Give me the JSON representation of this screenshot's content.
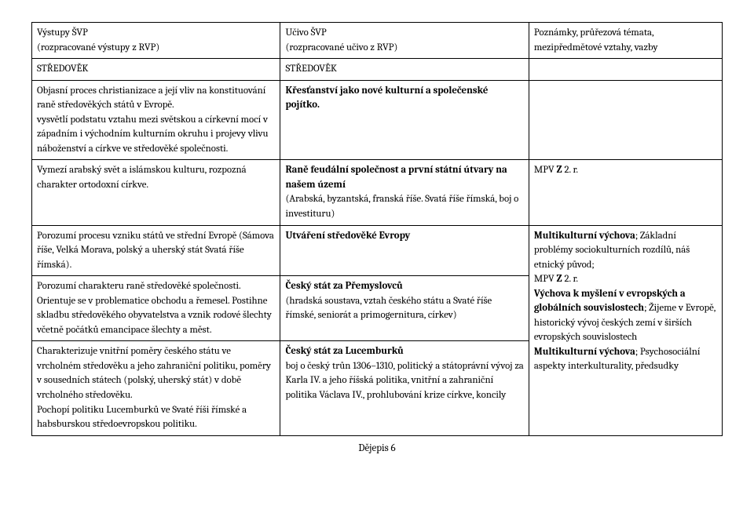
{
  "header": {
    "col1_line1": "Výstupy ŠVP",
    "col1_line2": "(rozpracované výstupy z RVP)",
    "col2_line1": "Učivo ŠVP",
    "col2_line2": "(rozpracované učivo z RVP)",
    "col3_line1": "Poznámky, průřezová témata,",
    "col3_line2": "mezipředmětové vztahy, vazby"
  },
  "row_section": {
    "col1": "STŘEDOVĚK",
    "col2": "STŘEDOVĚK"
  },
  "row1": {
    "col1_p1": "Objasní proces christianizace a její vliv na konstituování raně středověkých států v Evropě.",
    "col1_p2": "vysvětlí podstatu vztahu mezi světskou a církevní mocí v západním i východním kulturním okruhu i projevy vlivu náboženství a církve ve středověké společnosti.",
    "col2_b": "Křesťanství jako nové kulturní a společenské pojítko."
  },
  "row2": {
    "col1": "Vymezí arabský svět a islámskou kulturu, rozpozná charakter ortodoxní církve.",
    "col2_b": "Raně feudální společnost a první státní útvary na našem území",
    "col2_p": "(Arabská, byzantská, franská říše. Svatá říše římská, boj o investituru)",
    "col3_prefix": "MPV ",
    "col3_bold": "Z",
    "col3_suffix": " 2. r."
  },
  "group": {
    "c1_a": "Porozumí procesu vzniku států ve střední Evropě (Sámova říše, Velká Morava, polský a uherský stát Svatá říše římská).",
    "c2_a_b": "Utváření středověké Evropy",
    "c1_b": "Porozumí charakteru raně středověké společnosti. Orientuje se v problematice obchodu a řemesel. Postihne skladbu středověkého obyvatelstva a vznik rodové šlechty včetně počátků emancipace šlechty a měst.",
    "c2_b_b": "Český stát za Přemyslovců",
    "c2_b_p": "(hradská soustava, vztah českého státu a Svaté říše římské, seniorát a primogernitura, církev)",
    "c1_c_p1": "Charakterizuje vnitřní poměry českého státu ve vrcholném středověku a jeho zahraniční politiku, poměry v sousedních státech (polský, uherský stát) v době vrcholného středověku.",
    "c1_c_p2": "Pochopí politiku Lucemburků ve Svaté říši římské a habsburskou středoevropskou politiku.",
    "c2_c_b": "Český stát za Lucemburků",
    "c2_c_p": "boj o český trůn 1306–1310, politický a státoprávní vývoj za Karla IV. a jeho říšská politika, vnitřní a zahraniční politika Václava IV., prohlubování krize církve, koncily",
    "c3_b1": "Multikulturní výchova",
    "c3_t1": "; Základní problémy sociokulturních rozdílů, náš etnický původ;",
    "c3_mpv_pre": "MPV ",
    "c3_mpv_b": "Z",
    "c3_mpv_suf": " 2. r.",
    "c3_b2": "Výchova k myšlení v evropských a globálních souvislostech",
    "c3_t2": "; Žijeme v Evropě, historický vývoj českých zemí v širších evropských souvislostech",
    "c3_b3": "Multikulturní výchova",
    "c3_t3": "; Psychosociální aspekty interkulturality, předsudky"
  },
  "footer": "Dějepis 6"
}
